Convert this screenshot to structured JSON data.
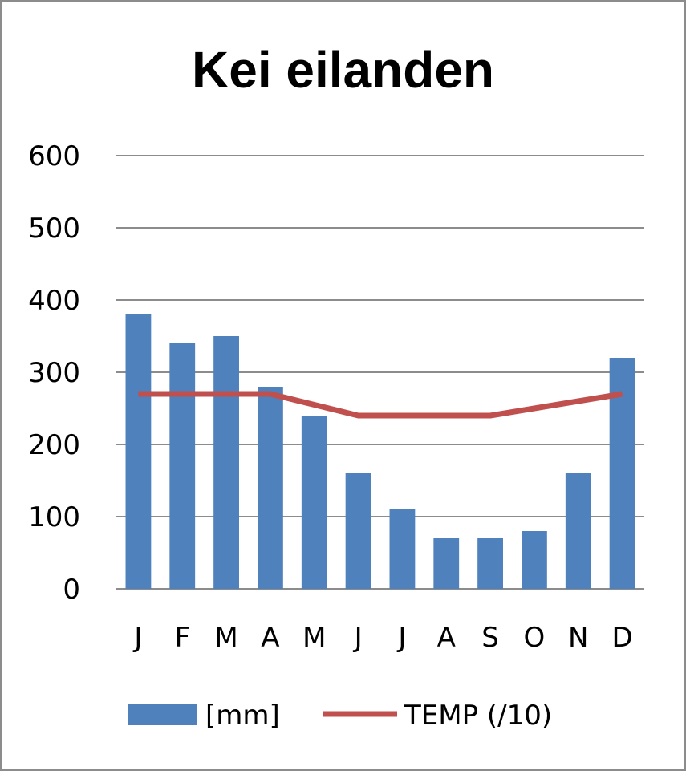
{
  "chart_data": {
    "type": "bar",
    "title": "Kei eilanden",
    "categories": [
      "J",
      "F",
      "M",
      "A",
      "M",
      "J",
      "J",
      "A",
      "S",
      "O",
      "N",
      "D"
    ],
    "ylim": [
      0,
      600
    ],
    "yticks": [
      0,
      100,
      200,
      300,
      400,
      500,
      600
    ],
    "grid": true,
    "legend_position": "bottom",
    "series": [
      {
        "name": "[mm]",
        "type": "bar",
        "color": "#4f81bd",
        "values": [
          380,
          340,
          350,
          280,
          240,
          160,
          110,
          70,
          70,
          80,
          160,
          320
        ]
      },
      {
        "name": "TEMP (/10)",
        "type": "line",
        "color": "#c0504d",
        "values": [
          270,
          270,
          270,
          270,
          255,
          240,
          240,
          240,
          240,
          250,
          260,
          270
        ]
      }
    ]
  }
}
